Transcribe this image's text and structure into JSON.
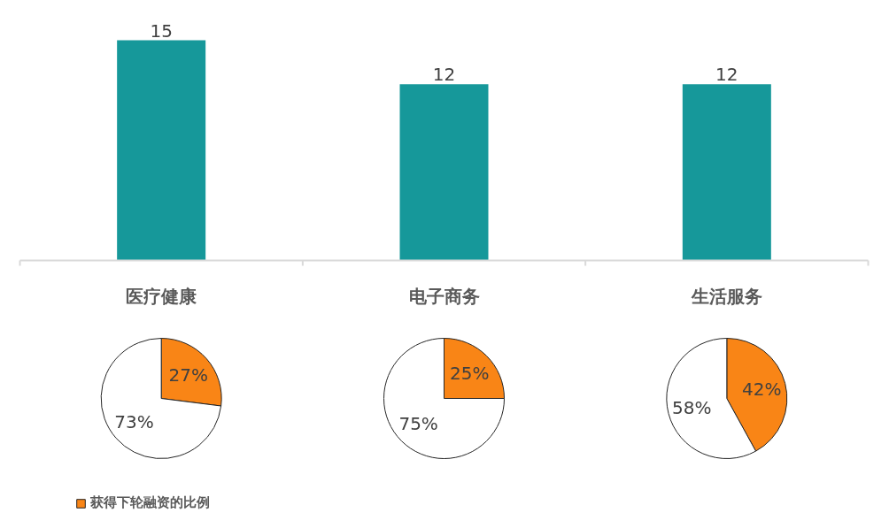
{
  "chart_data": [
    {
      "type": "bar",
      "categories": [
        "医疗健康",
        "电子商务",
        "生活服务"
      ],
      "values": [
        15,
        12,
        12
      ],
      "color": "#16989a",
      "data_labels": true
    },
    {
      "type": "pie",
      "categories": [
        "获得下轮融资的比例",
        null
      ],
      "values": [
        27,
        73
      ],
      "colors": [
        "#f98516",
        "#ffffff"
      ],
      "value_labels": [
        "27%",
        "73%"
      ],
      "legend": "bottom left"
    },
    {
      "type": "pie",
      "categories": [
        null,
        null
      ],
      "values": [
        25,
        75
      ],
      "colors": [
        "#f98516",
        "#ffffff"
      ],
      "value_labels": [
        "25%",
        "75%"
      ]
    },
    {
      "type": "pie",
      "categories": [
        null,
        null
      ],
      "values": [
        42,
        58
      ],
      "colors": [
        "#f98516",
        "#ffffff"
      ],
      "value_labels": [
        "42%",
        "58%"
      ]
    }
  ]
}
